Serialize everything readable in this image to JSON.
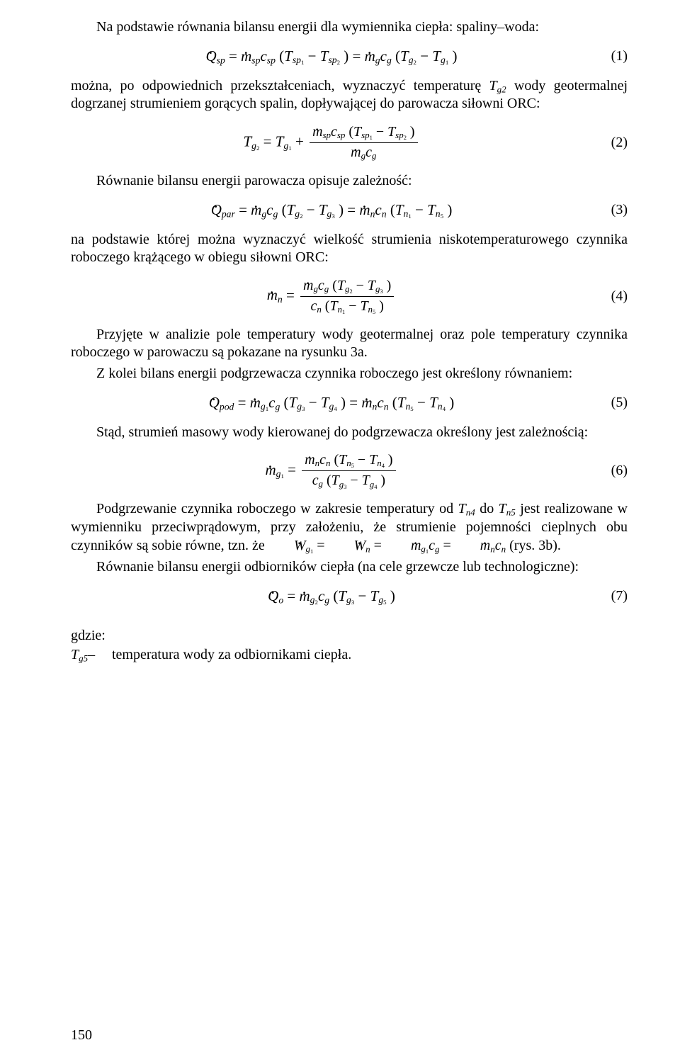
{
  "p1": "Na podstawie równania bilansu energii dla wymiennika ciepła: spaliny–woda:",
  "eq1": {
    "num": "(1)"
  },
  "p2_a": "można, po odpowiednich przekształceniach, wyznaczyć temperaturę ",
  "p2_T": "T",
  "p2_Tsub": "g2",
  "p2_b": " wody geotermalnej dogrzanej strumieniem gorących spalin, dopływającej do parowacza siłowni ORC:",
  "eq2": {
    "num": "(2)"
  },
  "p3": "Równanie bilansu energii parowacza opisuje zależność:",
  "eq3": {
    "num": "(3)"
  },
  "p4": "na podstawie której można wyznaczyć wielkość strumienia niskotemperaturowego czynnika roboczego  krążącego w obiegu siłowni ORC:",
  "eq4": {
    "num": "(4)"
  },
  "p5": "Przyjęte w analizie pole temperatury wody geotermalnej oraz pole temperatury czynnika roboczego w parowaczu są pokazane na rysunku 3a.",
  "p6": "Z kolei bilans energii podgrzewacza czynnika roboczego jest określony równaniem:",
  "eq5": {
    "num": "(5)"
  },
  "p7": "Stąd, strumień masowy wody kierowanej do podgrzewacza określony jest zależnością:",
  "eq6": {
    "num": "(6)"
  },
  "p8_a": "Podgrzewanie czynnika roboczego w zakresie temperatury od ",
  "p8_T1": "T",
  "p8_T1sub": "n4",
  "p8_b": " do ",
  "p8_T2": "T",
  "p8_T2sub": "n5",
  "p8_c": " jest rea­lizowane w wymienniku przeciwprądowym, przy założeniu, że strumienie pojemności cieplnych obu czynników są sobie równe, tzn. że ",
  "p8_d": " (rys. 3b).",
  "p9": "Równanie bilansu energii odbiorników ciepła (na cele grzewcze lub technologiczne):",
  "eq7": {
    "num": "(7)"
  },
  "gdzie": "gdzie:",
  "tg5_sym": "T",
  "tg5_sub": "g5",
  "tg5_dash": "–",
  "tg5_text": "temperatura wody za odbiornikami ciepła.",
  "pagenum": "150"
}
